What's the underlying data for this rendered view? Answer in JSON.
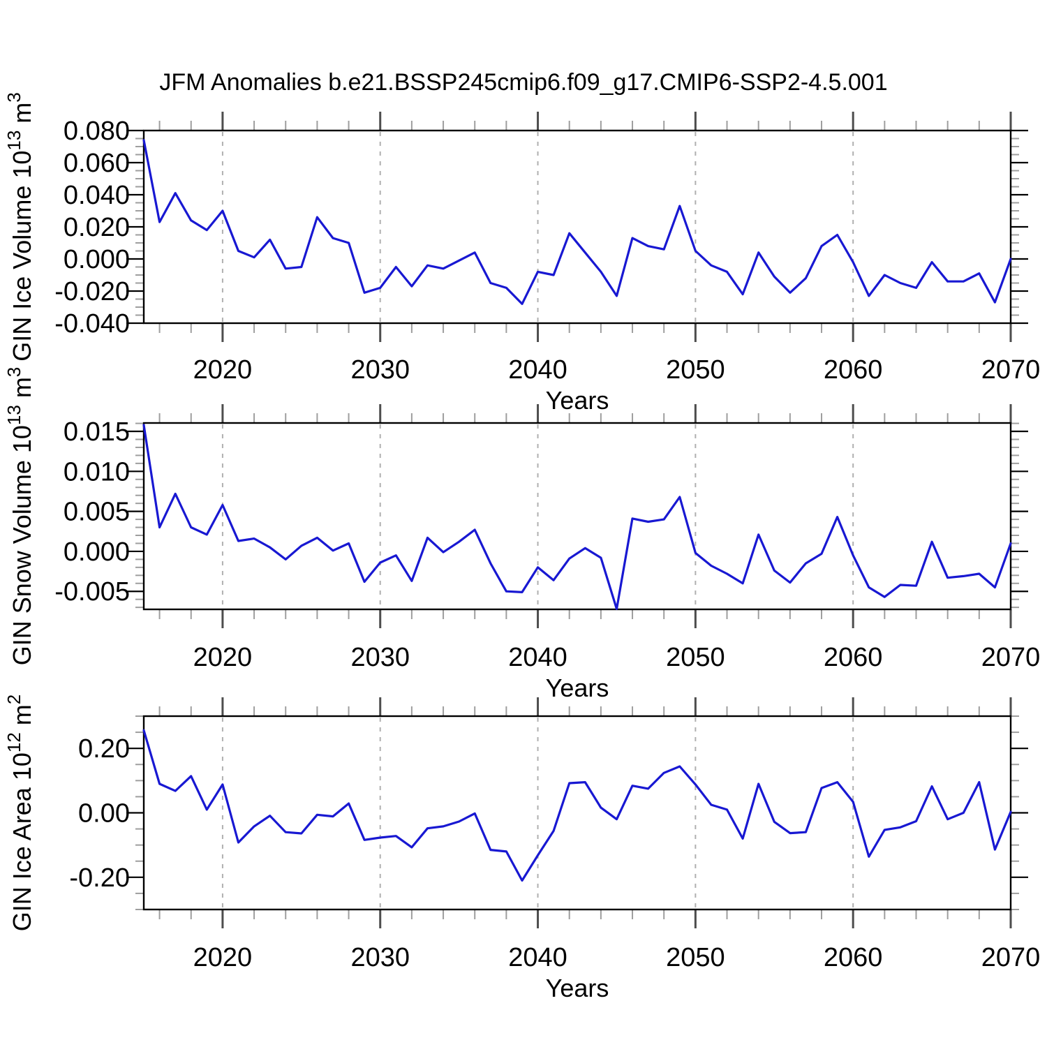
{
  "title": "JFM Anomalies b.e21.BSSP245cmip6.f09_g17.CMIP6-SSP2-4.5.001",
  "colors": {
    "line": "#1818d2",
    "grid": "#b0b0b0",
    "minor_tick": "#9e9e9e",
    "major_tick_x": "#4d4d4d",
    "axis": "#000000",
    "background": "#ffffff"
  },
  "x_axis": {
    "label": "Years",
    "years": [
      2015,
      2016,
      2017,
      2018,
      2019,
      2020,
      2021,
      2022,
      2023,
      2024,
      2025,
      2026,
      2027,
      2028,
      2029,
      2030,
      2031,
      2032,
      2033,
      2034,
      2035,
      2036,
      2037,
      2038,
      2039,
      2040,
      2041,
      2042,
      2043,
      2044,
      2045,
      2046,
      2047,
      2048,
      2049,
      2050,
      2051,
      2052,
      2053,
      2054,
      2055,
      2056,
      2057,
      2058,
      2059,
      2060,
      2061,
      2062,
      2063,
      2064,
      2065,
      2066,
      2067,
      2068,
      2069,
      2070
    ],
    "xlim": [
      2015,
      2070
    ],
    "major_ticks": [
      2020,
      2030,
      2040,
      2050,
      2060,
      2070
    ],
    "minor_step_years": 2,
    "gridlines": [
      2020,
      2030,
      2040,
      2050,
      2060
    ],
    "grid_style": "dashed"
  },
  "chart_data": [
    {
      "id": "gin-ice-volume",
      "type": "line",
      "ylabel": {
        "base": "GIN Ice Volume 10",
        "sup1": "13",
        "mid": " m",
        "sup2": "3"
      },
      "ylim": [
        -0.04,
        0.08
      ],
      "yticks": [
        {
          "value": 0.08,
          "label": "0.080"
        },
        {
          "value": 0.06,
          "label": "0.060"
        },
        {
          "value": 0.04,
          "label": "0.040"
        },
        {
          "value": 0.02,
          "label": "0.020"
        },
        {
          "value": 0.0,
          "label": "0.000"
        },
        {
          "value": -0.02,
          "label": "-0.020"
        },
        {
          "value": -0.04,
          "label": "-0.040"
        }
      ],
      "yminor_step": 0.005,
      "values": [
        0.074,
        0.023,
        0.041,
        0.024,
        0.018,
        0.03,
        0.005,
        0.001,
        0.012,
        -0.006,
        -0.005,
        0.026,
        0.013,
        0.01,
        -0.021,
        -0.018,
        -0.005,
        -0.017,
        -0.004,
        -0.006,
        -0.001,
        0.004,
        -0.015,
        -0.018,
        -0.028,
        -0.008,
        -0.01,
        0.016,
        0.004,
        -0.008,
        -0.023,
        0.013,
        0.008,
        0.006,
        0.033,
        0.005,
        -0.004,
        -0.008,
        -0.022,
        0.004,
        -0.011,
        -0.021,
        -0.012,
        0.008,
        0.015,
        -0.002,
        -0.023,
        -0.01,
        -0.015,
        -0.018,
        -0.002,
        -0.014,
        -0.014,
        -0.009,
        -0.027,
        0.0
      ]
    },
    {
      "id": "gin-snow-volume",
      "type": "line",
      "ylabel": {
        "base": "GIN Snow Volume 10",
        "sup1": "13",
        "mid": " m",
        "sup2": "3"
      },
      "ylim": [
        -0.00725,
        0.01605
      ],
      "yticks": [
        {
          "value": 0.015,
          "label": "0.015"
        },
        {
          "value": 0.01,
          "label": "0.010"
        },
        {
          "value": 0.005,
          "label": "0.005"
        },
        {
          "value": 0.0,
          "label": "0.000"
        },
        {
          "value": -0.005,
          "label": "-0.005"
        }
      ],
      "yminor_step": 0.001,
      "values": [
        0.0158,
        0.003,
        0.0072,
        0.003,
        0.0021,
        0.0058,
        0.0013,
        0.0016,
        0.0005,
        -0.001,
        0.0007,
        0.0017,
        0.0001,
        0.001,
        -0.0038,
        -0.0014,
        -0.0005,
        -0.0037,
        0.0017,
        -0.0001,
        0.0012,
        0.0027,
        -0.0015,
        -0.005,
        -0.0051,
        -0.002,
        -0.0036,
        -0.0009,
        0.0004,
        -0.0008,
        -0.0072,
        0.0041,
        0.0037,
        0.004,
        0.0068,
        -0.0002,
        -0.0018,
        -0.0028,
        -0.004,
        0.0021,
        -0.0024,
        -0.0039,
        -0.0015,
        -0.0003,
        0.0043,
        -0.0005,
        -0.0045,
        -0.0057,
        -0.0042,
        -0.0043,
        0.0012,
        -0.0033,
        -0.0031,
        -0.0028,
        -0.0045,
        0.001
      ]
    },
    {
      "id": "gin-ice-area",
      "type": "line",
      "ylabel": {
        "base": "GIN Ice Area 10",
        "sup1": "12",
        "mid": " m",
        "sup2": "2"
      },
      "ylim": [
        -0.3,
        0.3
      ],
      "yticks": [
        {
          "value": 0.2,
          "label": "0.20"
        },
        {
          "value": 0.0,
          "label": "0.00"
        },
        {
          "value": -0.2,
          "label": "-0.20"
        }
      ],
      "yminor_step": 0.05,
      "values": [
        0.256,
        0.09,
        0.068,
        0.114,
        0.01,
        0.088,
        -0.092,
        -0.042,
        -0.009,
        -0.06,
        -0.064,
        -0.006,
        -0.011,
        0.029,
        -0.084,
        -0.077,
        -0.072,
        -0.107,
        -0.048,
        -0.042,
        -0.027,
        -0.002,
        -0.115,
        -0.12,
        -0.21,
        -0.132,
        -0.056,
        0.092,
        0.095,
        0.016,
        -0.02,
        0.084,
        0.075,
        0.124,
        0.144,
        0.088,
        0.025,
        0.01,
        -0.08,
        0.09,
        -0.028,
        -0.063,
        -0.06,
        0.077,
        0.095,
        0.034,
        -0.136,
        -0.053,
        -0.045,
        -0.026,
        0.082,
        -0.02,
        0.0,
        0.095,
        -0.114,
        0.003
      ]
    }
  ]
}
